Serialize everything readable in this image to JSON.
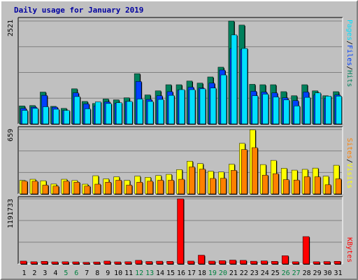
{
  "title": "Daily usage for January 2019",
  "colors": {
    "hits": "#00805c",
    "files": "#0040ff",
    "pages": "#00e0ff",
    "visits": "#ffff00",
    "sites": "#ff8000",
    "kbytes": "#ff0000",
    "weekend_label": "#008040",
    "weekday_label": "#000000"
  },
  "chart_data": [
    {
      "type": "bar",
      "panel": "top",
      "y_tick_label": "2521",
      "ylim": [
        0,
        2521
      ],
      "categories": [
        "1",
        "2",
        "3",
        "4",
        "5",
        "6",
        "7",
        "8",
        "9",
        "10",
        "11",
        "12",
        "13",
        "14",
        "15",
        "16",
        "17",
        "18",
        "19",
        "20",
        "21",
        "22",
        "23",
        "24",
        "25",
        "26",
        "27",
        "28",
        "29",
        "30",
        "31"
      ],
      "weekend_days": [
        "5",
        "6",
        "12",
        "13",
        "19",
        "20",
        "26",
        "27"
      ],
      "legend": [
        {
          "text": "Pages",
          "color": "#00e0ff"
        },
        {
          "text": "Files",
          "color": "#0040ff"
        },
        {
          "text": "Hits",
          "color": "#00805c"
        }
      ],
      "separator": "/",
      "series": [
        {
          "name": "Hits",
          "values": [
            440,
            450,
            780,
            430,
            380,
            860,
            550,
            500,
            610,
            590,
            640,
            1230,
            710,
            810,
            960,
            960,
            1050,
            1000,
            1150,
            1390,
            2521,
            2421,
            970,
            960,
            960,
            790,
            690,
            960,
            810,
            690,
            790
          ]
        },
        {
          "name": "Files",
          "values": [
            380,
            410,
            700,
            410,
            330,
            760,
            490,
            440,
            540,
            510,
            550,
            1040,
            600,
            690,
            790,
            830,
            900,
            880,
            1000,
            1320,
            1850,
            1820,
            800,
            780,
            760,
            640,
            570,
            780,
            710,
            620,
            710
          ]
        },
        {
          "name": "Pages",
          "values": [
            330,
            380,
            420,
            360,
            330,
            670,
            370,
            540,
            500,
            520,
            550,
            610,
            550,
            600,
            700,
            840,
            840,
            860,
            880,
            1200,
            2180,
            1850,
            690,
            730,
            660,
            590,
            440,
            650,
            760,
            680,
            680
          ]
        }
      ]
    },
    {
      "type": "bar",
      "panel": "middle",
      "y_tick_label": "659",
      "ylim": [
        0,
        659
      ],
      "legend": [
        {
          "text": "Sites",
          "color": "#ff8000"
        },
        {
          "text": "Visits",
          "color": "#ffff00"
        }
      ],
      "separator": "/",
      "series": [
        {
          "name": "Visits",
          "values": [
            139,
            150,
            135,
            101,
            150,
            137,
            100,
            186,
            154,
            175,
            139,
            182,
            170,
            188,
            200,
            249,
            335,
            310,
            232,
            224,
            304,
            517,
            656,
            300,
            343,
            262,
            243,
            251,
            264,
            181,
            293
          ]
        },
        {
          "name": "Sites",
          "values": [
            130,
            130,
            90,
            80,
            130,
            120,
            80,
            100,
            120,
            140,
            90,
            120,
            130,
            140,
            140,
            150,
            276,
            254,
            158,
            160,
            241,
            454,
            473,
            192,
            207,
            146,
            142,
            176,
            175,
            94,
            154
          ]
        }
      ]
    },
    {
      "type": "bar",
      "panel": "bottom",
      "y_tick_label": "1191733",
      "ylim": [
        0,
        1191733
      ],
      "legend": [
        {
          "text": "KBytes",
          "color": "#ff0000"
        }
      ],
      "series": [
        {
          "name": "KBytes",
          "values": [
            52000,
            40000,
            48000,
            38000,
            40000,
            38000,
            30000,
            36000,
            52000,
            38000,
            40000,
            65000,
            45000,
            50000,
            48000,
            1191733,
            52000,
            160000,
            52000,
            60000,
            70000,
            65000,
            50000,
            55000,
            48000,
            150000,
            40000,
            500000,
            40000,
            44000,
            48000
          ]
        }
      ]
    }
  ]
}
